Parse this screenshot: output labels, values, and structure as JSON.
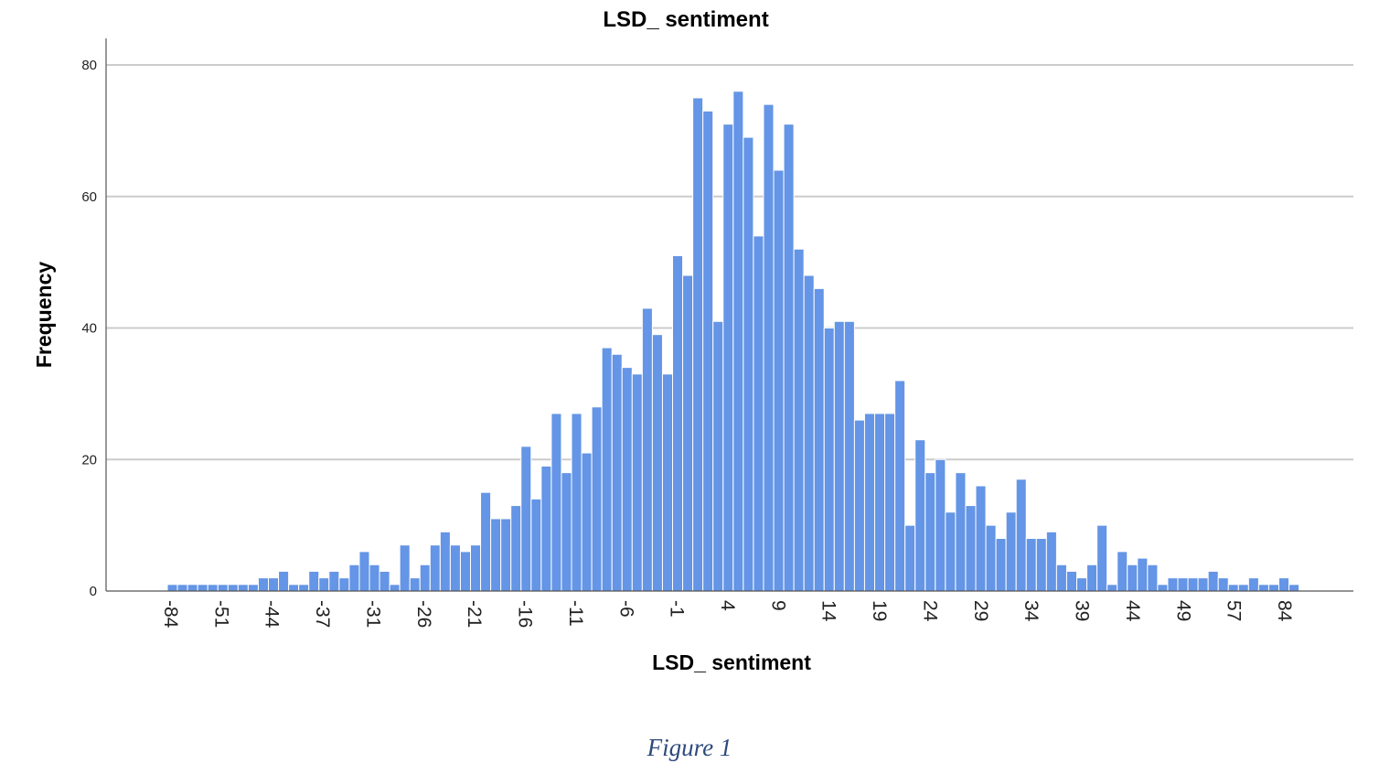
{
  "caption": "Figure 1",
  "colors": {
    "bar_fill": "#6495e6",
    "bar_stroke": "#ffffff",
    "grid": "#cccccc",
    "axis": "#555555",
    "caption": "#2e4a7d"
  },
  "chart_data": {
    "type": "bar",
    "title": "LSD_ sentiment",
    "xlabel": "LSD_ sentiment",
    "ylabel": "Frequency",
    "ylim": [
      0,
      84
    ],
    "yticks": [
      0,
      20,
      40,
      60,
      80
    ],
    "grid": true,
    "x_tick_labels": [
      "-84",
      "-51",
      "-44",
      "-37",
      "-31",
      "-26",
      "-21",
      "-16",
      "-11",
      "-6",
      "-1",
      "4",
      "9",
      "14",
      "19",
      "24",
      "29",
      "34",
      "39",
      "44",
      "49",
      "57",
      "84"
    ],
    "values": [
      1,
      1,
      1,
      1,
      1,
      1,
      1,
      1,
      1,
      2,
      2,
      3,
      1,
      1,
      3,
      2,
      3,
      2,
      4,
      6,
      4,
      3,
      1,
      7,
      2,
      4,
      7,
      9,
      7,
      6,
      7,
      15,
      11,
      11,
      13,
      22,
      14,
      19,
      27,
      18,
      27,
      21,
      28,
      37,
      36,
      34,
      33,
      43,
      39,
      33,
      51,
      48,
      75,
      73,
      41,
      71,
      76,
      69,
      54,
      74,
      64,
      71,
      52,
      48,
      46,
      40,
      41,
      41,
      26,
      27,
      27,
      27,
      32,
      10,
      23,
      18,
      20,
      12,
      18,
      13,
      16,
      10,
      8,
      12,
      17,
      8,
      8,
      9,
      4,
      3,
      2,
      4,
      10,
      1,
      6,
      4,
      5,
      4,
      1,
      2,
      2,
      2,
      2,
      3,
      2,
      1,
      1,
      2,
      1,
      1,
      2,
      1
    ]
  }
}
